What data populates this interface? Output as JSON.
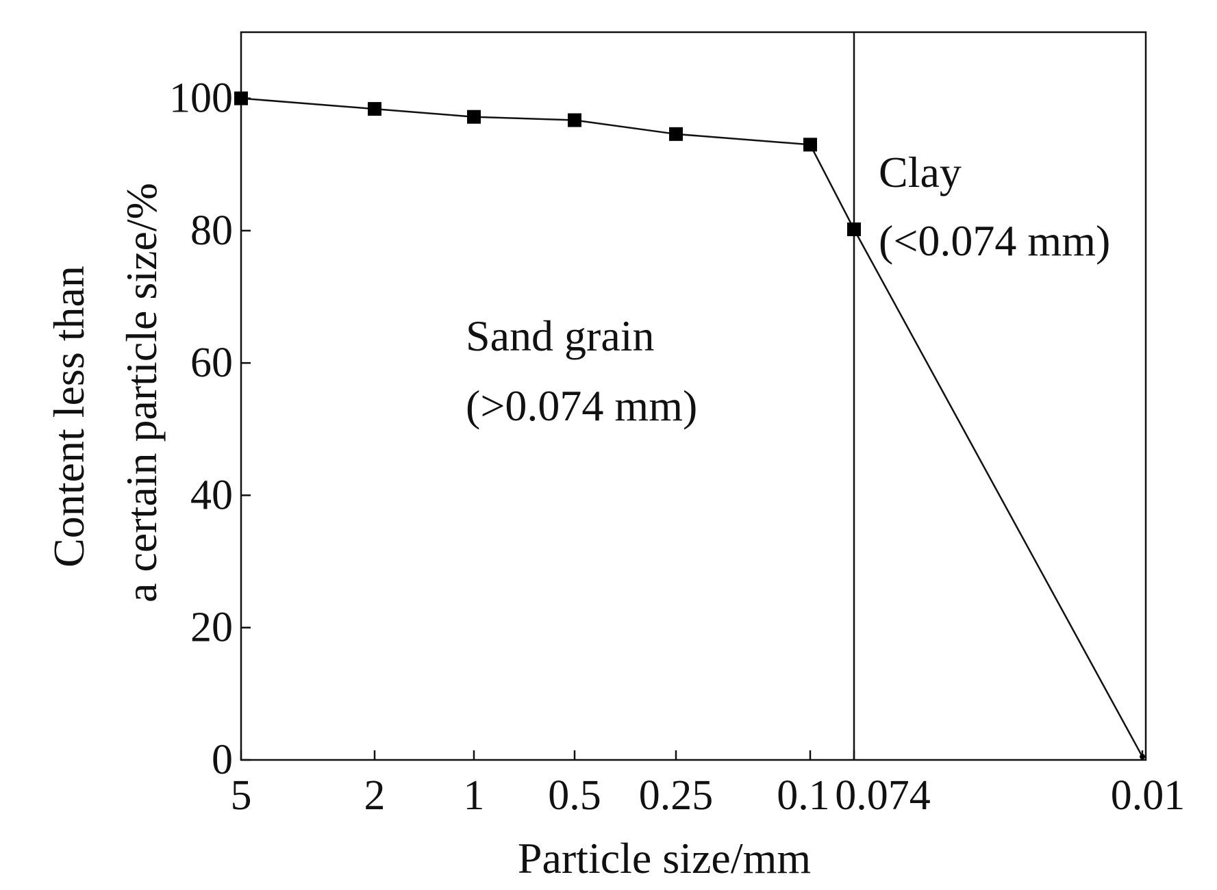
{
  "chart_data": {
    "type": "line",
    "xlabel": "Particle size/mm",
    "ylabel_lines": [
      "Content less than",
      "a certain particle size/%"
    ],
    "x_scale": "ordinal (categorical spacing)",
    "categories": [
      "5",
      "2",
      "1",
      "0.5",
      "0.25",
      "0.1",
      "0.074",
      "0.01"
    ],
    "series": [
      {
        "x": [
          5,
          2,
          1,
          0.5,
          0.25,
          0.1,
          0.074,
          0.01
        ],
        "y": [
          100,
          98.4,
          97.2,
          96.7,
          94.6,
          93.0,
          80.2,
          0.5
        ],
        "marker": "square"
      }
    ],
    "yticks": [
      0,
      20,
      40,
      60,
      80,
      100
    ],
    "ylim": [
      0,
      110
    ],
    "divider_at_x": 0.074,
    "annotations": [
      {
        "lines": [
          "Sand grain",
          "(>0.074 mm)"
        ]
      },
      {
        "lines": [
          "Clay",
          "(<0.074 mm)"
        ]
      }
    ],
    "grid": false,
    "legend": "none",
    "colors": {
      "line": "#111111",
      "marker": "#000000",
      "axis": "#111111"
    }
  }
}
